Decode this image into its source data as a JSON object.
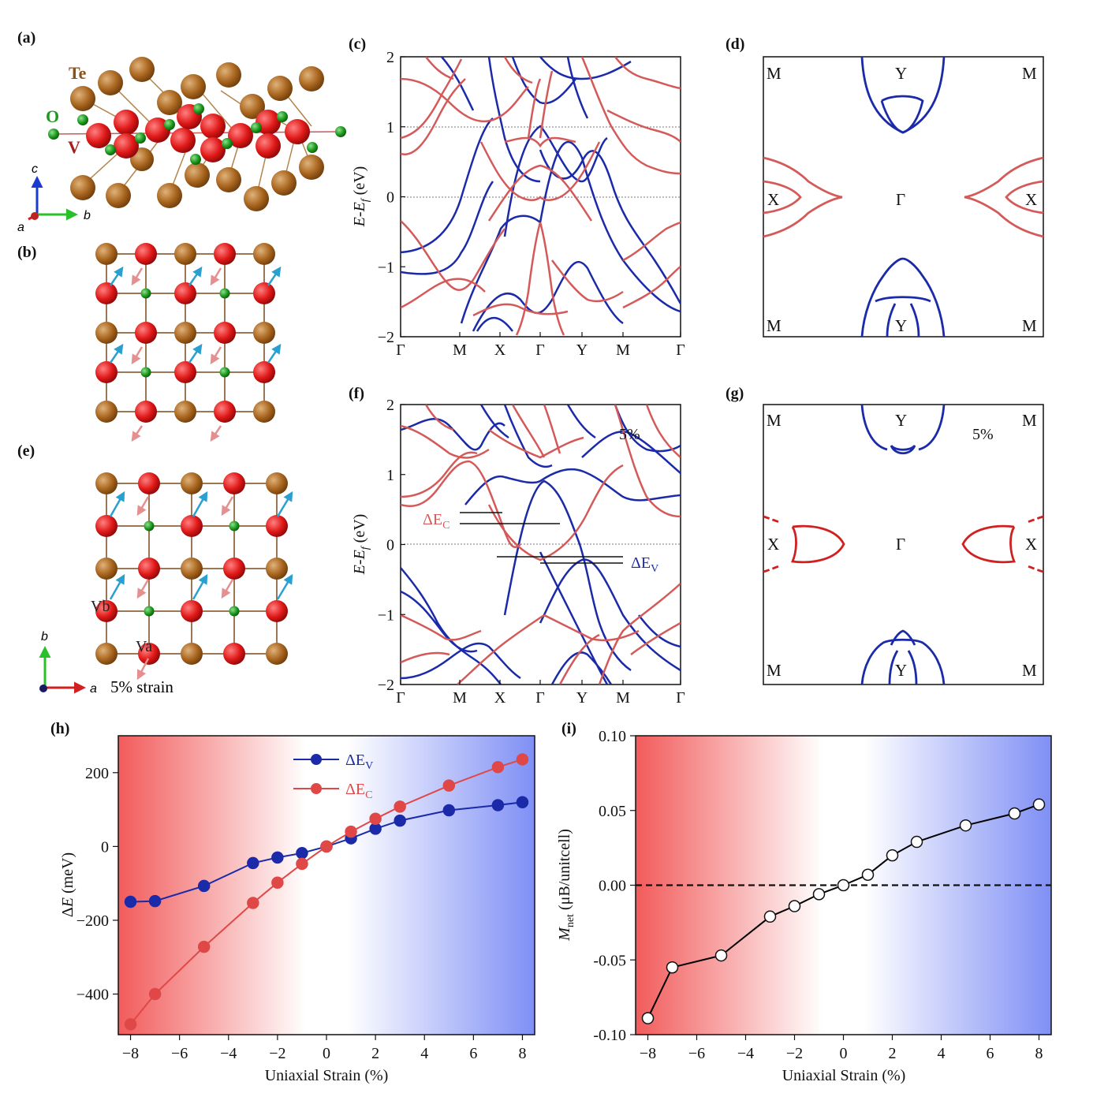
{
  "figure": {
    "panel_labels": [
      "(a)",
      "(b)",
      "(c)",
      "(d)",
      "(e)",
      "(f)",
      "(g)",
      "(h)",
      "(i)"
    ],
    "colors": {
      "spin_up": "#d45a5a",
      "spin_down": "#1a2aa8",
      "red_gradient": "#f25b5b",
      "blue_gradient": "#7f8ff5"
    },
    "structure_a": {
      "atoms": [
        "Te",
        "O",
        "V"
      ],
      "axes": [
        "c",
        "b",
        "a"
      ]
    },
    "structure_e": {
      "sites": [
        "Vb",
        "Va"
      ],
      "axes": [
        "b",
        "a"
      ],
      "caption": "5% strain"
    },
    "bands_c": {
      "ylabel": "E-E_f (eV)",
      "yticks": [
        "2",
        "1",
        "0",
        "−1",
        "−2"
      ],
      "kpath": [
        "Γ",
        "M",
        "X",
        "Γ",
        "Y",
        "M",
        "Γ"
      ]
    },
    "bands_f": {
      "ylabel": "E-E_f (eV)",
      "yticks": [
        "2",
        "1",
        "0",
        "−1",
        "−2"
      ],
      "kpath": [
        "Γ",
        "M",
        "X",
        "Γ",
        "Y",
        "M",
        "Γ"
      ],
      "strain": "5%",
      "gap_c": "ΔE_C",
      "gap_v": "ΔE_V"
    },
    "fs_d": {
      "corners": [
        "M",
        "M",
        "M",
        "M"
      ],
      "edges": [
        "Y",
        "Y",
        "X",
        "X"
      ],
      "center": "Γ"
    },
    "fs_g": {
      "corners": [
        "M",
        "M",
        "M",
        "M"
      ],
      "edges": [
        "Y",
        "Y",
        "X",
        "X"
      ],
      "center": "Γ",
      "strain": "5%"
    }
  },
  "chart_data": [
    {
      "type": "line",
      "panel": "(h)",
      "xlabel": "Uniaxial Strain (%)",
      "ylabel": "ΔE (meV)",
      "xlim": [
        -8.5,
        8.5
      ],
      "ylim": [
        -510,
        300
      ],
      "xticks": [
        -8,
        -6,
        -4,
        -2,
        0,
        2,
        4,
        6,
        8
      ],
      "yticks": [
        200,
        0,
        -200,
        -400
      ],
      "legend": "top-center",
      "series": [
        {
          "name": "ΔEV",
          "color": "#1a2aa8",
          "x": [
            -8,
            -7,
            -5,
            -3,
            -2,
            -1,
            0,
            1,
            2,
            3,
            5,
            7,
            8
          ],
          "values": [
            -150,
            -148,
            -107,
            -45,
            -30,
            -18,
            0,
            22,
            48,
            70,
            98,
            112,
            120
          ]
        },
        {
          "name": "ΔEC",
          "color": "#e04848",
          "x": [
            -8,
            -7,
            -5,
            -3,
            -2,
            -1,
            0,
            1,
            2,
            3,
            5,
            7,
            8
          ],
          "values": [
            -482,
            -400,
            -272,
            -153,
            -98,
            -47,
            0,
            40,
            75,
            108,
            165,
            215,
            236
          ]
        }
      ]
    },
    {
      "type": "line",
      "panel": "(i)",
      "xlabel": "Uniaxial Strain (%)",
      "ylabel": "M_net (μB/unitcell)",
      "xlim": [
        -8.5,
        8.5
      ],
      "ylim": [
        -0.1,
        0.1
      ],
      "xticks": [
        -8,
        -6,
        -4,
        -2,
        0,
        2,
        4,
        6,
        8
      ],
      "yticks": [
        "0.10",
        "0.05",
        "0.00",
        "-0.05",
        "-0.10"
      ],
      "series": [
        {
          "color": "#000000",
          "x": [
            -8,
            -7,
            -5,
            -3,
            -2,
            -1,
            0,
            1,
            2,
            3,
            5,
            7,
            8
          ],
          "values": [
            -0.089,
            -0.055,
            -0.047,
            -0.021,
            -0.014,
            -0.006,
            0.0,
            0.007,
            0.02,
            0.029,
            0.04,
            0.048,
            0.054
          ]
        }
      ]
    }
  ]
}
